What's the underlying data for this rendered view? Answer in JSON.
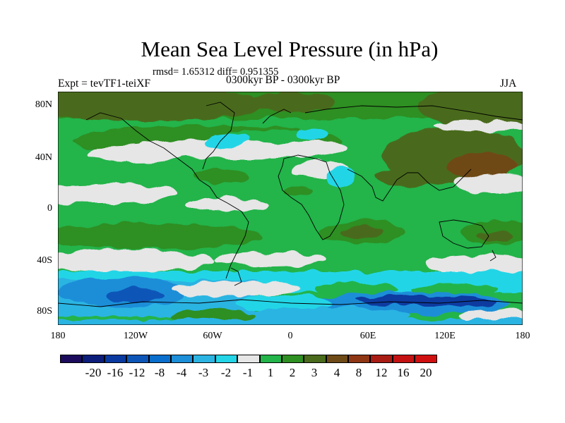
{
  "title": "Mean Sea Level Pressure (in hPa)",
  "stats": "rmsd= 1.65312 diff= 0.951355",
  "experiment": "Expt = tevTF1-teiXF",
  "period": "0300kyr BP - 0300kyr BP",
  "season": "JJA",
  "map": {
    "projection": "cylindrical equidistant",
    "lat_ticks": [
      "80N",
      "40N",
      "0",
      "40S",
      "80S"
    ],
    "lon_ticks": [
      "180",
      "120W",
      "60W",
      "0",
      "60E",
      "120E",
      "180"
    ]
  },
  "colorbar": {
    "labels": [
      "-20",
      "-16",
      "-12",
      "-8",
      "-4",
      "-3",
      "-2",
      "-1",
      "1",
      "2",
      "3",
      "4",
      "8",
      "12",
      "16",
      "20"
    ],
    "colors": [
      "#1c0b5c",
      "#0c1d7a",
      "#0a3aa0",
      "#0d56b8",
      "#0a6fcc",
      "#1d8ed8",
      "#2bb4e2",
      "#23d5e6",
      "#e6e6e6",
      "#23b44a",
      "#2e8f22",
      "#4a6a1c",
      "#6e4a16",
      "#8f3714",
      "#a81c14",
      "#c41212",
      "#d01010"
    ]
  }
}
